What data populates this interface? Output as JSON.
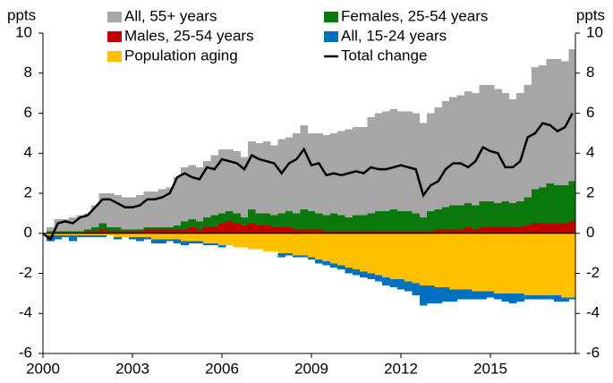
{
  "chart_data": {
    "type": "bar",
    "stacked": true,
    "y_unit_left": "ppts",
    "y_unit_right": "ppts",
    "x": [
      2000,
      2000.25,
      2000.5,
      2000.75,
      2001,
      2001.25,
      2001.5,
      2001.75,
      2002,
      2002.25,
      2002.5,
      2002.75,
      2003,
      2003.25,
      2003.5,
      2003.75,
      2004,
      2004.25,
      2004.5,
      2004.75,
      2005,
      2005.25,
      2005.5,
      2005.75,
      2006,
      2006.25,
      2006.5,
      2006.75,
      2007,
      2007.25,
      2007.5,
      2007.75,
      2008,
      2008.25,
      2008.5,
      2008.75,
      2009,
      2009.25,
      2009.5,
      2009.75,
      2010,
      2010.25,
      2010.5,
      2010.75,
      2011,
      2011.25,
      2011.5,
      2011.75,
      2012,
      2012.25,
      2012.5,
      2012.75,
      2013,
      2013.25,
      2013.5,
      2013.75,
      2014,
      2014.25,
      2014.5,
      2014.75,
      2015,
      2015.25,
      2015.5,
      2015.75,
      2016,
      2016.25,
      2016.5,
      2016.75,
      2017,
      2017.25,
      2017.5,
      2017.75
    ],
    "xlim": [
      2000,
      2017.85
    ],
    "xticks": [
      2000,
      2003,
      2006,
      2009,
      2012,
      2015
    ],
    "ylim": [
      -6,
      10
    ],
    "yticks": [
      -6,
      -4,
      -2,
      0,
      2,
      4,
      6,
      8,
      10
    ],
    "y2lim": [
      -6,
      10
    ],
    "y2ticks": [
      -6,
      -4,
      -2,
      0,
      2,
      4,
      6,
      8,
      10
    ],
    "series": [
      {
        "name": "All, 55+ years",
        "color": "#a6a6a6",
        "values": [
          0,
          0.2,
          0.6,
          0.6,
          0.7,
          0.8,
          0.8,
          1.1,
          1.5,
          1.7,
          1.6,
          1.6,
          1.6,
          1.7,
          1.8,
          1.8,
          1.9,
          2.0,
          2.4,
          2.7,
          2.7,
          2.7,
          2.8,
          3.0,
          3.2,
          3.1,
          3.1,
          3.0,
          3.4,
          3.5,
          3.6,
          3.5,
          3.7,
          3.7,
          4.0,
          4.2,
          3.9,
          4.0,
          4.0,
          4.0,
          4.2,
          4.4,
          4.4,
          4.4,
          4.8,
          4.9,
          5.0,
          5.0,
          5.0,
          5.0,
          5.0,
          4.7,
          4.9,
          5.1,
          5.3,
          5.4,
          5.5,
          5.6,
          5.6,
          5.8,
          5.8,
          5.7,
          5.4,
          5.2,
          5.4,
          5.6,
          6.1,
          6.1,
          6.2,
          6.3,
          6.2,
          6.6
        ]
      },
      {
        "name": "Females, 25-54 years",
        "color": "#0b780b",
        "values": [
          0,
          0.1,
          0.1,
          0.1,
          0.1,
          0.1,
          0.1,
          0.2,
          0.3,
          0.2,
          0.2,
          0.1,
          0.1,
          0.1,
          0.1,
          0.1,
          0.1,
          0.1,
          0.2,
          0.4,
          0.4,
          0.4,
          0.5,
          0.6,
          0.5,
          0.5,
          0.5,
          0.4,
          0.7,
          0.6,
          0.6,
          0.6,
          0.7,
          0.8,
          0.8,
          1.0,
          0.9,
          0.8,
          0.8,
          0.9,
          0.8,
          0.7,
          0.8,
          0.8,
          0.9,
          1.0,
          1.0,
          1.1,
          1.0,
          1.0,
          0.9,
          0.7,
          1.0,
          1.0,
          1.1,
          1.2,
          1.2,
          1.2,
          1.2,
          1.3,
          1.3,
          1.2,
          1.3,
          1.2,
          1.3,
          1.4,
          1.7,
          1.8,
          2.0,
          1.9,
          1.9,
          2.0
        ]
      },
      {
        "name": "Males, 25-54 years",
        "color": "#c00000",
        "values": [
          0,
          0,
          0,
          0,
          0,
          0,
          0.1,
          0.1,
          0.2,
          0.1,
          0.1,
          0.1,
          0.1,
          0.1,
          0.2,
          0.2,
          0.2,
          0.2,
          0.2,
          0.2,
          0.3,
          0.2,
          0.3,
          0.3,
          0.5,
          0.6,
          0.5,
          0.4,
          0.5,
          0.4,
          0.4,
          0.3,
          0.3,
          0.3,
          0.2,
          0.2,
          0.2,
          0.2,
          0.1,
          0.1,
          0.1,
          0.1,
          0.1,
          0.1,
          0.1,
          0.1,
          0.1,
          0.1,
          0.1,
          0.1,
          0.1,
          0.1,
          0.1,
          0.2,
          0.2,
          0.2,
          0.2,
          0.3,
          0.2,
          0.3,
          0.3,
          0.3,
          0.3,
          0.3,
          0.3,
          0.4,
          0.5,
          0.5,
          0.5,
          0.5,
          0.5,
          0.6
        ]
      },
      {
        "name": "All, 15-24 years",
        "color": "#0070c0",
        "values": [
          0,
          -0.3,
          -0.2,
          -0.1,
          -0.3,
          -0.1,
          -0.1,
          -0.1,
          -0.1,
          0,
          -0.1,
          0,
          -0.1,
          -0.2,
          -0.1,
          -0.2,
          -0.2,
          -0.1,
          -0.2,
          -0.2,
          -0.1,
          -0.1,
          -0.1,
          -0.1,
          -0.1,
          0,
          0,
          0,
          0,
          0,
          0,
          0,
          -0.2,
          -0.1,
          -0.1,
          -0.1,
          -0.1,
          -0.2,
          -0.2,
          -0.2,
          -0.2,
          -0.3,
          -0.3,
          -0.3,
          -0.3,
          -0.3,
          -0.4,
          -0.4,
          -0.5,
          -0.5,
          -0.6,
          -1.0,
          -0.9,
          -0.8,
          -0.7,
          -0.6,
          -0.5,
          -0.5,
          -0.4,
          -0.4,
          -0.3,
          -0.3,
          -0.4,
          -0.5,
          -0.4,
          -0.2,
          -0.2,
          -0.2,
          -0.2,
          -0.3,
          -0.2,
          -0.1
        ]
      },
      {
        "name": "Population aging",
        "color": "#ffc000",
        "values": [
          0,
          -0.1,
          -0.1,
          -0.1,
          -0.1,
          -0.1,
          -0.1,
          -0.1,
          -0.1,
          -0.1,
          -0.2,
          -0.2,
          -0.2,
          -0.2,
          -0.2,
          -0.3,
          -0.3,
          -0.3,
          -0.3,
          -0.4,
          -0.4,
          -0.4,
          -0.5,
          -0.5,
          -0.6,
          -0.6,
          -0.7,
          -0.7,
          -0.8,
          -0.8,
          -0.9,
          -0.9,
          -1.0,
          -1.0,
          -1.1,
          -1.1,
          -1.2,
          -1.3,
          -1.4,
          -1.5,
          -1.6,
          -1.7,
          -1.8,
          -1.9,
          -2.0,
          -2.1,
          -2.2,
          -2.3,
          -2.3,
          -2.4,
          -2.5,
          -2.6,
          -2.6,
          -2.7,
          -2.7,
          -2.8,
          -2.8,
          -2.8,
          -2.9,
          -2.9,
          -2.9,
          -3.0,
          -3.0,
          -3.0,
          -3.0,
          -3.1,
          -3.1,
          -3.1,
          -3.1,
          -3.1,
          -3.2,
          -3.2
        ]
      },
      {
        "name": "Total change",
        "color": "#000000",
        "type": "line",
        "values": [
          0,
          -0.3,
          0.5,
          0.6,
          0.5,
          0.8,
          0.9,
          1.3,
          1.7,
          1.7,
          1.5,
          1.3,
          1.3,
          1.4,
          1.7,
          1.7,
          1.8,
          2.0,
          2.8,
          3.0,
          2.8,
          2.7,
          3.3,
          3.2,
          3.7,
          3.6,
          3.5,
          3.2,
          3.9,
          3.7,
          3.6,
          3.5,
          3.0,
          3.5,
          3.7,
          4.2,
          3.4,
          3.5,
          2.9,
          3.0,
          2.9,
          3.0,
          3.1,
          3.0,
          3.3,
          3.2,
          3.2,
          3.3,
          3.4,
          3.3,
          3.2,
          1.9,
          2.4,
          2.6,
          3.2,
          3.5,
          3.5,
          3.3,
          3.6,
          4.3,
          4.1,
          4.0,
          3.3,
          3.3,
          3.6,
          4.8,
          5.0,
          5.5,
          5.4,
          5.1,
          5.3,
          6.0
        ]
      }
    ]
  }
}
